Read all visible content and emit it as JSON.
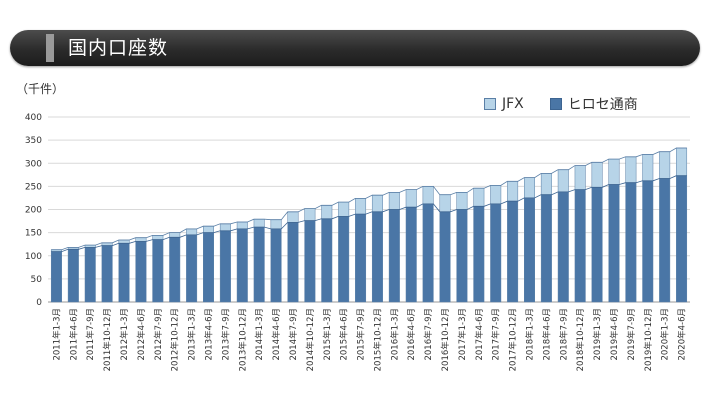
{
  "header": {
    "title": "国内口座数"
  },
  "colors": {
    "hirose": "#4a76a6",
    "jfx": "#b7d4e8",
    "bar_stroke": "#5a7fa6",
    "grid": "#d9d9d9"
  },
  "chart_data": {
    "type": "bar",
    "stacked": true,
    "unit_label": "（千件）",
    "ylim": [
      0,
      400
    ],
    "yticks": [
      0,
      50,
      100,
      150,
      200,
      250,
      300,
      350,
      400
    ],
    "grid": true,
    "legend_position": "top-right",
    "categories": [
      "2011年1-3月",
      "2011年4-6月",
      "2011年7-9月",
      "2011年10-12月",
      "2012年1-3月",
      "2012年4-6月",
      "2012年7-9月",
      "2012年10-12月",
      "2013年1-3月",
      "2013年4-6月",
      "2013年7-9月",
      "2013年10-12月",
      "2014年1-3月",
      "2014年4-6月",
      "2014年7-9月",
      "2014年10-12月",
      "2015年1-3月",
      "2015年4-6月",
      "2015年7-9月",
      "2015年10-12月",
      "2016年1-3月",
      "2016年4-6月",
      "2016年7-9月",
      "2016年10-12月",
      "2017年1-3月",
      "2017年4-6月",
      "2017年7-9月",
      "2017年10-12月",
      "2018年1-3月",
      "2018年4-6月",
      "2018年7-9月",
      "2018年10-12月",
      "2019年1-3月",
      "2019年4-6月",
      "2019年7-9月",
      "2019年10-12月",
      "2020年1-3月",
      "2020年4-6月"
    ],
    "series": [
      {
        "name": "ヒロセ通商",
        "values": [
          109,
          114,
          118,
          122,
          127,
          131,
          135,
          140,
          145,
          150,
          154,
          158,
          162,
          158,
          172,
          176,
          180,
          185,
          190,
          195,
          200,
          205,
          212,
          195,
          200,
          207,
          212,
          218,
          225,
          232,
          238,
          243,
          248,
          254,
          258,
          262,
          267,
          273
        ]
      },
      {
        "name": "JFX",
        "values": [
          4,
          4,
          5,
          6,
          7,
          8,
          9,
          10,
          13,
          14,
          15,
          15,
          17,
          20,
          23,
          26,
          29,
          31,
          34,
          36,
          37,
          38,
          38,
          37,
          37,
          39,
          40,
          43,
          44,
          46,
          48,
          52,
          54,
          55,
          56,
          57,
          58,
          60
        ]
      }
    ]
  }
}
